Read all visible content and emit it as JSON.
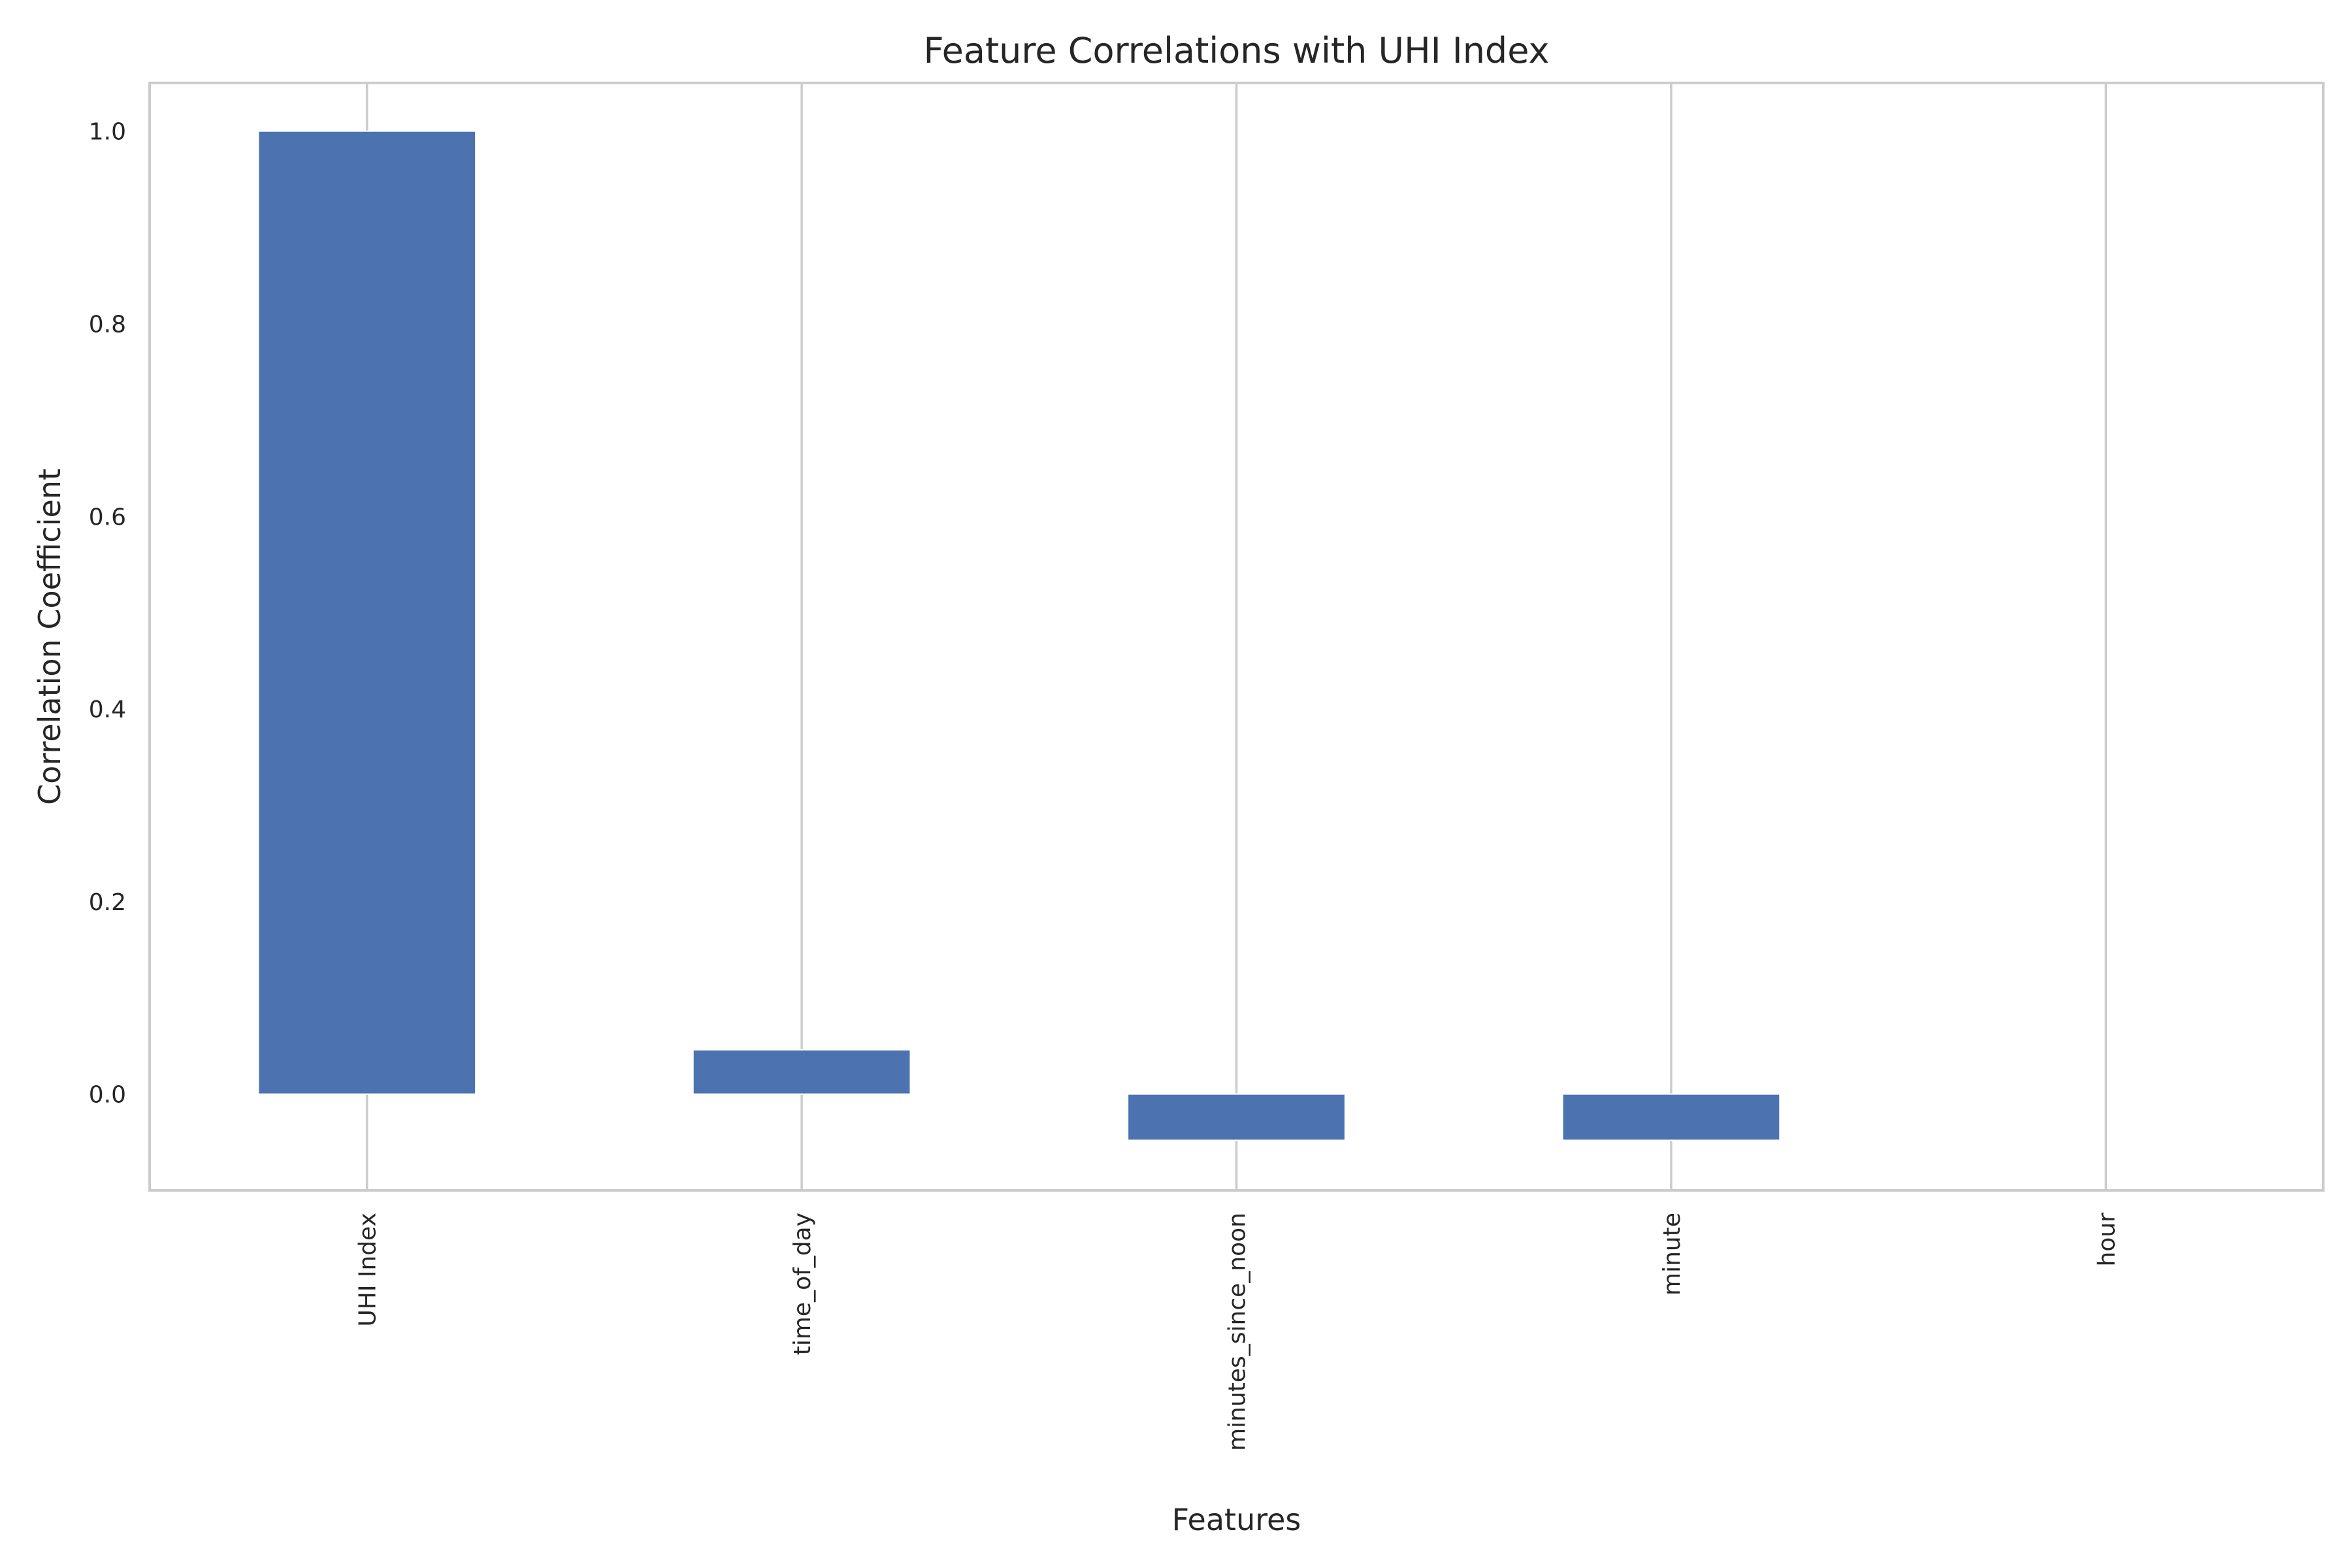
{
  "colors": {
    "bar": "#4c72b0",
    "grid": "#cccccc",
    "frame": "#cccccc",
    "text": "#262626",
    "background": "#ffffff"
  },
  "chart_data": {
    "type": "bar",
    "title": "Feature Correlations with UHI Index",
    "xlabel": "Features",
    "ylabel": "Correlation Coefficient",
    "categories": [
      "UHI Index",
      "time_of_day",
      "minutes_since_noon",
      "minute",
      "hour"
    ],
    "values": [
      1.0,
      0.046,
      -0.048,
      -0.048,
      0.0
    ],
    "ylim": [
      -0.1,
      1.05
    ],
    "yticks": [
      0.0,
      0.2,
      0.4,
      0.6,
      0.8,
      1.0
    ],
    "ytick_labels": [
      "0.0",
      "0.2",
      "0.4",
      "0.6",
      "0.8",
      "1.0"
    ],
    "xtick_rotation": "vertical",
    "grid": "vertical",
    "legend": "none"
  }
}
